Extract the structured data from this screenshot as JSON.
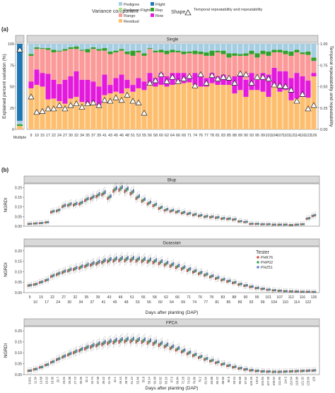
{
  "legend": {
    "variance_title": "Variance component",
    "components": [
      {
        "label": "Pedigree",
        "color": "#a6cee3"
      },
      {
        "label": "Pedigree:Flight",
        "color": "#b2df8a"
      },
      {
        "label": "Range",
        "color": "#fb9a99"
      },
      {
        "label": "Residual",
        "color": "#fdbf6f"
      },
      {
        "label": "Flight",
        "color": "#1f78b4"
      },
      {
        "label": "Rep",
        "color": "#33a02c"
      },
      {
        "label": "Row",
        "color": "#e31adc"
      }
    ],
    "shape_title": "Shape",
    "shape_label": "Temporal repeatability and repeatability"
  },
  "panel_a": {
    "tag": "(a)",
    "strip": "Single",
    "ylabel": "Explained percent variation (%)",
    "y2label": "Temporal repeatability and repeatability",
    "yticks": [
      "0",
      "25",
      "50",
      "75",
      "100"
    ],
    "y2ticks": [
      "0.00",
      "0.25",
      "0.50",
      "0.75",
      "1.00"
    ],
    "multiple_label": "Multiple"
  },
  "panel_b": {
    "tag": "(b)",
    "xlabel": "Days after planting (DAP)",
    "ylabel": "NGRDI",
    "yticks": [
      "0.00",
      "0.05",
      "0.10",
      "0.15",
      "0.20"
    ],
    "strips": [
      "Blup",
      "Guassian",
      "FPCA"
    ],
    "tester_title": "Tester",
    "testers": [
      {
        "label": "PHK76",
        "color": "#d7504a"
      },
      {
        "label": "PHP02",
        "color": "#3aa55c"
      },
      {
        "label": "PHZ51",
        "color": "#5c7fd0"
      }
    ]
  },
  "chart_data": [
    {
      "type": "bar",
      "title": "Single",
      "stacked": true,
      "categories": [
        "9",
        "10",
        "15",
        "17",
        "22",
        "24",
        "27",
        "30",
        "32",
        "34",
        "35",
        "37",
        "39",
        "41",
        "43",
        "45",
        "46",
        "48",
        "51",
        "53",
        "55",
        "56",
        "58",
        "60",
        "62",
        "64",
        "66",
        "69",
        "71",
        "74",
        "76",
        "77",
        "78",
        "81",
        "83",
        "85",
        "88",
        "89",
        "90",
        "93",
        "95",
        "99",
        "101",
        "104",
        "107",
        "110",
        "112",
        "114",
        "116",
        "122",
        "126"
      ],
      "ylim": [
        0,
        100
      ],
      "y2lim": [
        0,
        1
      ],
      "series": [
        {
          "name": "Residual",
          "values": [
            48,
            52,
            50,
            35,
            36,
            33,
            30,
            36,
            38,
            32,
            30,
            32,
            28,
            40,
            42,
            44,
            42,
            48,
            44,
            48,
            46,
            54,
            50,
            52,
            50,
            52,
            56,
            54,
            55,
            52,
            50,
            50,
            54,
            52,
            52,
            52,
            42,
            46,
            38,
            46,
            46,
            44,
            38,
            50,
            44,
            46,
            34,
            36,
            38,
            37,
            62
          ]
        },
        {
          "name": "Row",
          "values": [
            8,
            18,
            16,
            30,
            22,
            20,
            28,
            26,
            30,
            26,
            28,
            24,
            22,
            24,
            10,
            16,
            22,
            10,
            8,
            12,
            10,
            12,
            10,
            14,
            12,
            14,
            10,
            12,
            8,
            14,
            14,
            10,
            12,
            10,
            12,
            8,
            20,
            18,
            20,
            20,
            12,
            22,
            26,
            22,
            24,
            22,
            26,
            30,
            24,
            20,
            4
          ]
        },
        {
          "name": "Range",
          "values": [
            30,
            24,
            28,
            28,
            32,
            38,
            34,
            32,
            26,
            34,
            32,
            38,
            42,
            28,
            36,
            30,
            28,
            30,
            34,
            30,
            30,
            28,
            30,
            24,
            26,
            24,
            24,
            22,
            26,
            22,
            24,
            26,
            20,
            28,
            24,
            24,
            24,
            22,
            28,
            22,
            26,
            22,
            22,
            18,
            22,
            20,
            26,
            24,
            26,
            30,
            14
          ]
        },
        {
          "name": "Rep",
          "values": [
            2,
            2,
            1,
            2,
            3,
            1,
            2,
            2,
            3,
            1,
            4,
            2,
            2,
            3,
            3,
            2,
            2,
            3,
            6,
            2,
            3,
            1,
            2,
            3,
            4,
            3,
            2,
            3,
            2,
            4,
            3,
            4,
            6,
            2,
            4,
            5,
            3,
            2,
            3,
            4,
            5,
            4,
            5,
            3,
            3,
            4,
            5,
            3,
            2,
            4,
            4
          ]
        },
        {
          "name": "Pedigree",
          "values": [
            12,
            4,
            5,
            5,
            7,
            8,
            6,
            4,
            3,
            7,
            6,
            4,
            6,
            5,
            9,
            8,
            6,
            9,
            8,
            8,
            11,
            5,
            8,
            7,
            8,
            7,
            8,
            9,
            9,
            8,
            9,
            10,
            8,
            8,
            8,
            11,
            11,
            12,
            11,
            8,
            11,
            8,
            9,
            7,
            7,
            8,
            9,
            7,
            10,
            9,
            16
          ]
        }
      ],
      "repeatability": [
        0.38,
        0.2,
        0.21,
        0.24,
        0.24,
        0.28,
        0.24,
        0.28,
        0.3,
        0.26,
        0.3,
        0.31,
        0.28,
        0.34,
        0.33,
        0.37,
        0.34,
        0.4,
        0.33,
        0.31,
        0.19,
        0.54,
        0.57,
        0.64,
        0.56,
        0.61,
        0.56,
        0.59,
        0.62,
        0.51,
        0.64,
        0.54,
        0.63,
        0.59,
        0.61,
        0.6,
        0.54,
        0.65,
        0.64,
        0.54,
        0.61,
        0.61,
        0.59,
        0.52,
        0.51,
        0.5,
        0.46,
        0.33,
        0.41,
        0.24,
        0.28
      ],
      "multiple": {
        "Flight": 90,
        "Pedigree": 4,
        "Residual": 4,
        "Rep": 2,
        "repeatability": 0.93
      }
    },
    {
      "type": "box",
      "title": "Blup",
      "xlabel": "Days after planting (DAP)",
      "ylabel": "NGRDI",
      "ylim": [
        0,
        0.22
      ],
      "x": [
        9,
        10,
        15,
        17,
        22,
        24,
        27,
        30,
        32,
        34,
        35,
        37,
        39,
        41,
        43,
        45,
        46,
        48,
        51,
        53,
        55,
        56,
        58,
        60,
        62,
        64,
        66,
        69,
        71,
        74,
        76,
        77,
        78,
        81,
        83,
        85,
        88,
        89,
        90,
        93,
        95,
        99,
        101,
        104,
        107,
        110,
        112,
        114,
        116,
        122,
        126
      ],
      "values": [
        0.012,
        0.014,
        0.016,
        0.02,
        0.075,
        0.082,
        0.105,
        0.112,
        0.114,
        0.12,
        0.138,
        0.148,
        0.16,
        0.17,
        0.15,
        0.19,
        0.195,
        0.188,
        0.175,
        0.15,
        0.135,
        0.12,
        0.11,
        0.095,
        0.085,
        0.08,
        0.075,
        0.07,
        0.065,
        0.06,
        0.055,
        0.05,
        0.048,
        0.045,
        0.04,
        0.038,
        0.035,
        0.025,
        0.022,
        0.012,
        0.012,
        0.01,
        0.01,
        0.008,
        0.008,
        0.008,
        0.006,
        0.008,
        0.01,
        0.04,
        0.055
      ]
    },
    {
      "type": "box",
      "title": "Guassian",
      "xlabel": "Days after planting (DAP)",
      "ylabel": "NGRDI",
      "ylim": [
        0,
        0.22
      ],
      "xticks": [
        "9",
        "10",
        "15",
        "17",
        "22",
        "24",
        "27",
        "30",
        "32",
        "34",
        "35",
        "37",
        "39",
        "41",
        "43",
        "45",
        "46",
        "48",
        "51",
        "53",
        "55",
        "56",
        "58",
        "60",
        "62",
        "64",
        "66",
        "69",
        "71",
        "74",
        "76",
        "77",
        "78",
        "81",
        "83",
        "85",
        "88",
        "89",
        "90",
        "93",
        "95",
        "99",
        "101",
        "104",
        "107",
        "110",
        "112",
        "114",
        "116",
        "122",
        "126"
      ],
      "values": [
        0.035,
        0.04,
        0.05,
        0.06,
        0.08,
        0.09,
        0.1,
        0.108,
        0.115,
        0.122,
        0.13,
        0.137,
        0.143,
        0.15,
        0.155,
        0.158,
        0.16,
        0.16,
        0.16,
        0.158,
        0.156,
        0.153,
        0.15,
        0.145,
        0.138,
        0.132,
        0.125,
        0.118,
        0.11,
        0.102,
        0.094,
        0.086,
        0.078,
        0.07,
        0.062,
        0.055,
        0.048,
        0.04,
        0.034,
        0.028,
        0.022,
        0.018,
        0.014,
        0.011,
        0.009,
        0.007,
        0.006,
        0.005,
        0.004,
        0.004,
        0.003
      ]
    },
    {
      "type": "box",
      "title": "FPCA",
      "xlabel": "Days after planting (DAP)",
      "ylabel": "NGRDI",
      "ylim": [
        0,
        0.22
      ],
      "xticks": [
        "9.001",
        "11.34",
        "13.68",
        "16.02",
        "18.36",
        "20.7",
        "23.04",
        "25.38",
        "27.72",
        "30.06",
        "32.4",
        "34.74",
        "37.08",
        "39.42",
        "41.76",
        "44.1",
        "46.44",
        "48.78",
        "51.12",
        "53.46",
        "55.8",
        "58.14",
        "60.48",
        "62.82",
        "65.16",
        "67.5",
        "69.84",
        "72.18",
        "74.52",
        "76.86",
        "79.2",
        "81.54",
        "83.88",
        "86.22",
        "88.56",
        "90.9",
        "93.24",
        "95.58",
        "97.92",
        "100.26",
        "102.6",
        "104.94",
        "107.28",
        "109.62",
        "111.96",
        "114.3",
        "116.64",
        "118.98",
        "121.32",
        "123.66",
        "126"
      ],
      "values": [
        0.018,
        0.025,
        0.034,
        0.045,
        0.058,
        0.071,
        0.083,
        0.094,
        0.104,
        0.114,
        0.123,
        0.131,
        0.138,
        0.144,
        0.149,
        0.153,
        0.156,
        0.158,
        0.158,
        0.157,
        0.155,
        0.151,
        0.146,
        0.14,
        0.133,
        0.125,
        0.117,
        0.108,
        0.099,
        0.09,
        0.081,
        0.072,
        0.064,
        0.056,
        0.048,
        0.041,
        0.035,
        0.029,
        0.024,
        0.02,
        0.017,
        0.015,
        0.014,
        0.013,
        0.013,
        0.014,
        0.015,
        0.016,
        0.017,
        0.018,
        0.019
      ]
    }
  ]
}
